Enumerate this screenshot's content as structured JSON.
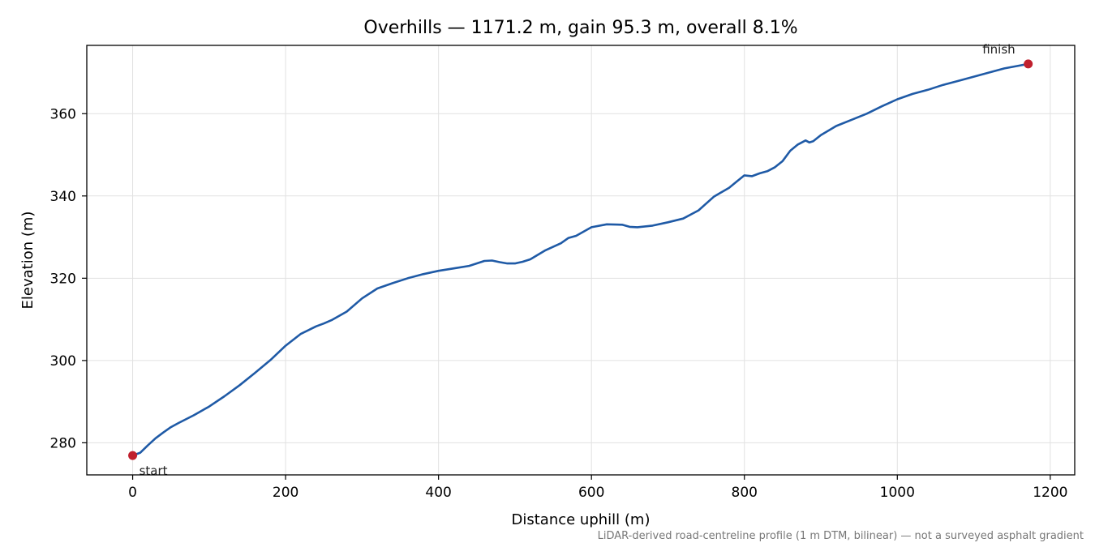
{
  "chart_data": {
    "type": "line",
    "title": "Overhills — 1171.2 m, gain 95.3 m, overall 8.1%",
    "xlabel": "Distance uphill (m)",
    "ylabel": "Elevation (m)",
    "footnote": "LiDAR-derived road-centreline profile (1 m DTM, bilinear) — not a surveyed asphalt gradient",
    "xlim": [
      -60,
      1232
    ],
    "ylim": [
      272.2,
      376.6
    ],
    "xticks": [
      0,
      200,
      400,
      600,
      800,
      1000,
      1200
    ],
    "yticks": [
      280,
      300,
      320,
      340,
      360
    ],
    "grid": true,
    "line_color": "#1f5aa6",
    "marker_color": "#c0202e",
    "series": [
      {
        "x": [
          0,
          10,
          20,
          30,
          40,
          50,
          60,
          80,
          100,
          120,
          140,
          160,
          180,
          200,
          220,
          240,
          250,
          260,
          280,
          300,
          320,
          340,
          360,
          380,
          400,
          420,
          440,
          460,
          470,
          480,
          490,
          500,
          510,
          520,
          540,
          560,
          570,
          580,
          600,
          620,
          640,
          650,
          660,
          680,
          700,
          720,
          730,
          740,
          760,
          780,
          790,
          800,
          810,
          820,
          830,
          840,
          850,
          860,
          870,
          880,
          885,
          890,
          900,
          920,
          940,
          960,
          980,
          1000,
          1020,
          1040,
          1060,
          1080,
          1100,
          1120,
          1140,
          1160,
          1171.2
        ],
        "y": [
          276.9,
          277.6,
          279.4,
          281.1,
          282.5,
          283.8,
          284.8,
          286.7,
          288.8,
          291.3,
          294.0,
          297.0,
          300.1,
          303.6,
          306.5,
          308.3,
          309.0,
          309.8,
          311.9,
          315.1,
          317.5,
          318.8,
          320.0,
          321.0,
          321.8,
          322.4,
          323.0,
          324.2,
          324.3,
          323.9,
          323.6,
          323.6,
          324.0,
          324.6,
          326.8,
          328.5,
          329.8,
          330.3,
          332.4,
          333.1,
          333.0,
          332.5,
          332.4,
          332.8,
          333.6,
          334.5,
          335.5,
          336.5,
          339.8,
          342.0,
          343.5,
          345.0,
          344.8,
          345.5,
          346.0,
          347.0,
          348.5,
          351.0,
          352.5,
          353.5,
          353.0,
          353.3,
          354.8,
          357.0,
          358.5,
          360.0,
          361.8,
          363.5,
          364.8,
          365.8,
          367.0,
          368.0,
          369.0,
          370.0,
          371.0,
          371.7,
          372.1
        ]
      }
    ],
    "annotations": [
      {
        "text": "start",
        "x": 0,
        "y": 276.9
      },
      {
        "text": "finish",
        "x": 1171.2,
        "y": 372.1
      }
    ]
  }
}
